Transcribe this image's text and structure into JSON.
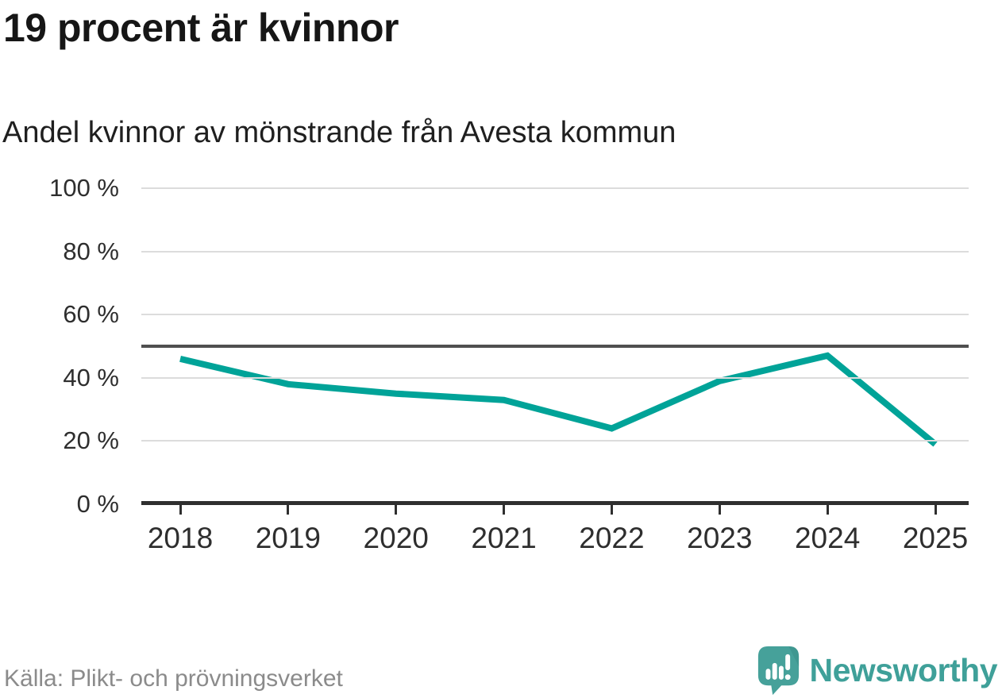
{
  "header": {
    "title": "19 procent är kvinnor",
    "subtitle": "Andel kvinnor av mönstrande från Avesta kommun"
  },
  "chart_data": {
    "type": "line",
    "title": "19 procent är kvinnor",
    "subtitle": "Andel kvinnor av mönstrande från Avesta kommun",
    "categories": [
      "2018",
      "2019",
      "2020",
      "2021",
      "2022",
      "2023",
      "2024",
      "2025"
    ],
    "series": [
      {
        "name": "Andel kvinnor av mönstrande",
        "values": [
          46,
          38,
          35,
          33,
          24,
          39,
          47,
          19
        ]
      }
    ],
    "unit": "%",
    "xlabel": "",
    "ylabel": "",
    "ylim": [
      0,
      100
    ],
    "yticks": [
      0,
      20,
      40,
      60,
      80,
      100
    ],
    "ytick_suffix": " %",
    "reference_line": 50,
    "grid": true,
    "legend": "none",
    "line_color": "#00a398"
  },
  "footer": {
    "source": "Källa: Plikt- och prövningsverket",
    "brand": "Newsworthy"
  },
  "colors": {
    "line": "#00a398",
    "grid": "#dcdcdc",
    "reference": "#4f4f4f",
    "axis": "#2f2f2f",
    "brand_teal": "#3fa099",
    "icon_teal": "#46a19a",
    "icon_teal_dark": "#3a8f89",
    "text_dark": "#161616",
    "text_gray": "#8b8b8b"
  }
}
